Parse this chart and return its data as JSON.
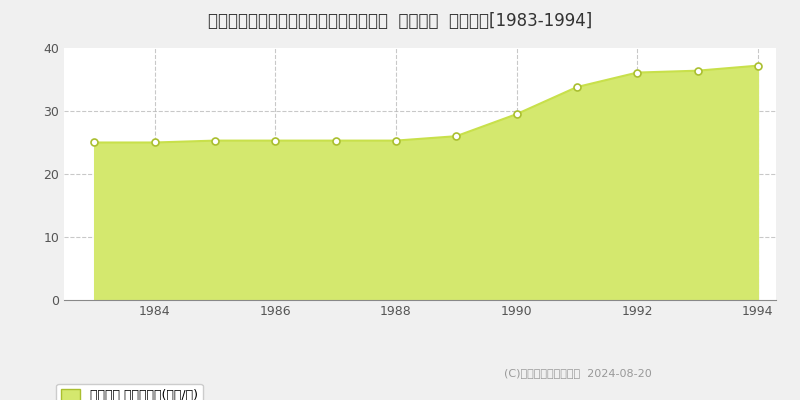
{
  "title": "福井県福井市高木北２丁目１１２番３外  地価公示  地価推移[1983-1994]",
  "years": [
    1983,
    1984,
    1985,
    1986,
    1987,
    1988,
    1989,
    1990,
    1991,
    1992,
    1993,
    1994
  ],
  "values": [
    25.0,
    25.0,
    25.3,
    25.3,
    25.3,
    25.3,
    26.0,
    29.5,
    33.8,
    36.1,
    36.4,
    37.2
  ],
  "ylim": [
    0,
    40
  ],
  "yticks": [
    0,
    10,
    20,
    30,
    40
  ],
  "xticks": [
    1984,
    1986,
    1988,
    1990,
    1992,
    1994
  ],
  "line_color": "#c8e04b",
  "fill_color": "#d4e86e",
  "fill_alpha": 1.0,
  "marker_facecolor": "#ffffff",
  "marker_edgecolor": "#aabf30",
  "bg_color": "#f0f0f0",
  "plot_bg_color": "#ffffff",
  "grid_color_h": "#bbbbbb",
  "grid_color_v": "#bbbbbb",
  "legend_label": "地価公示 平均坪単価(万円/坪)",
  "copyright_text": "(C)土地価格ドットコム  2024-08-20",
  "title_fontsize": 12,
  "axis_fontsize": 9,
  "legend_fontsize": 9
}
